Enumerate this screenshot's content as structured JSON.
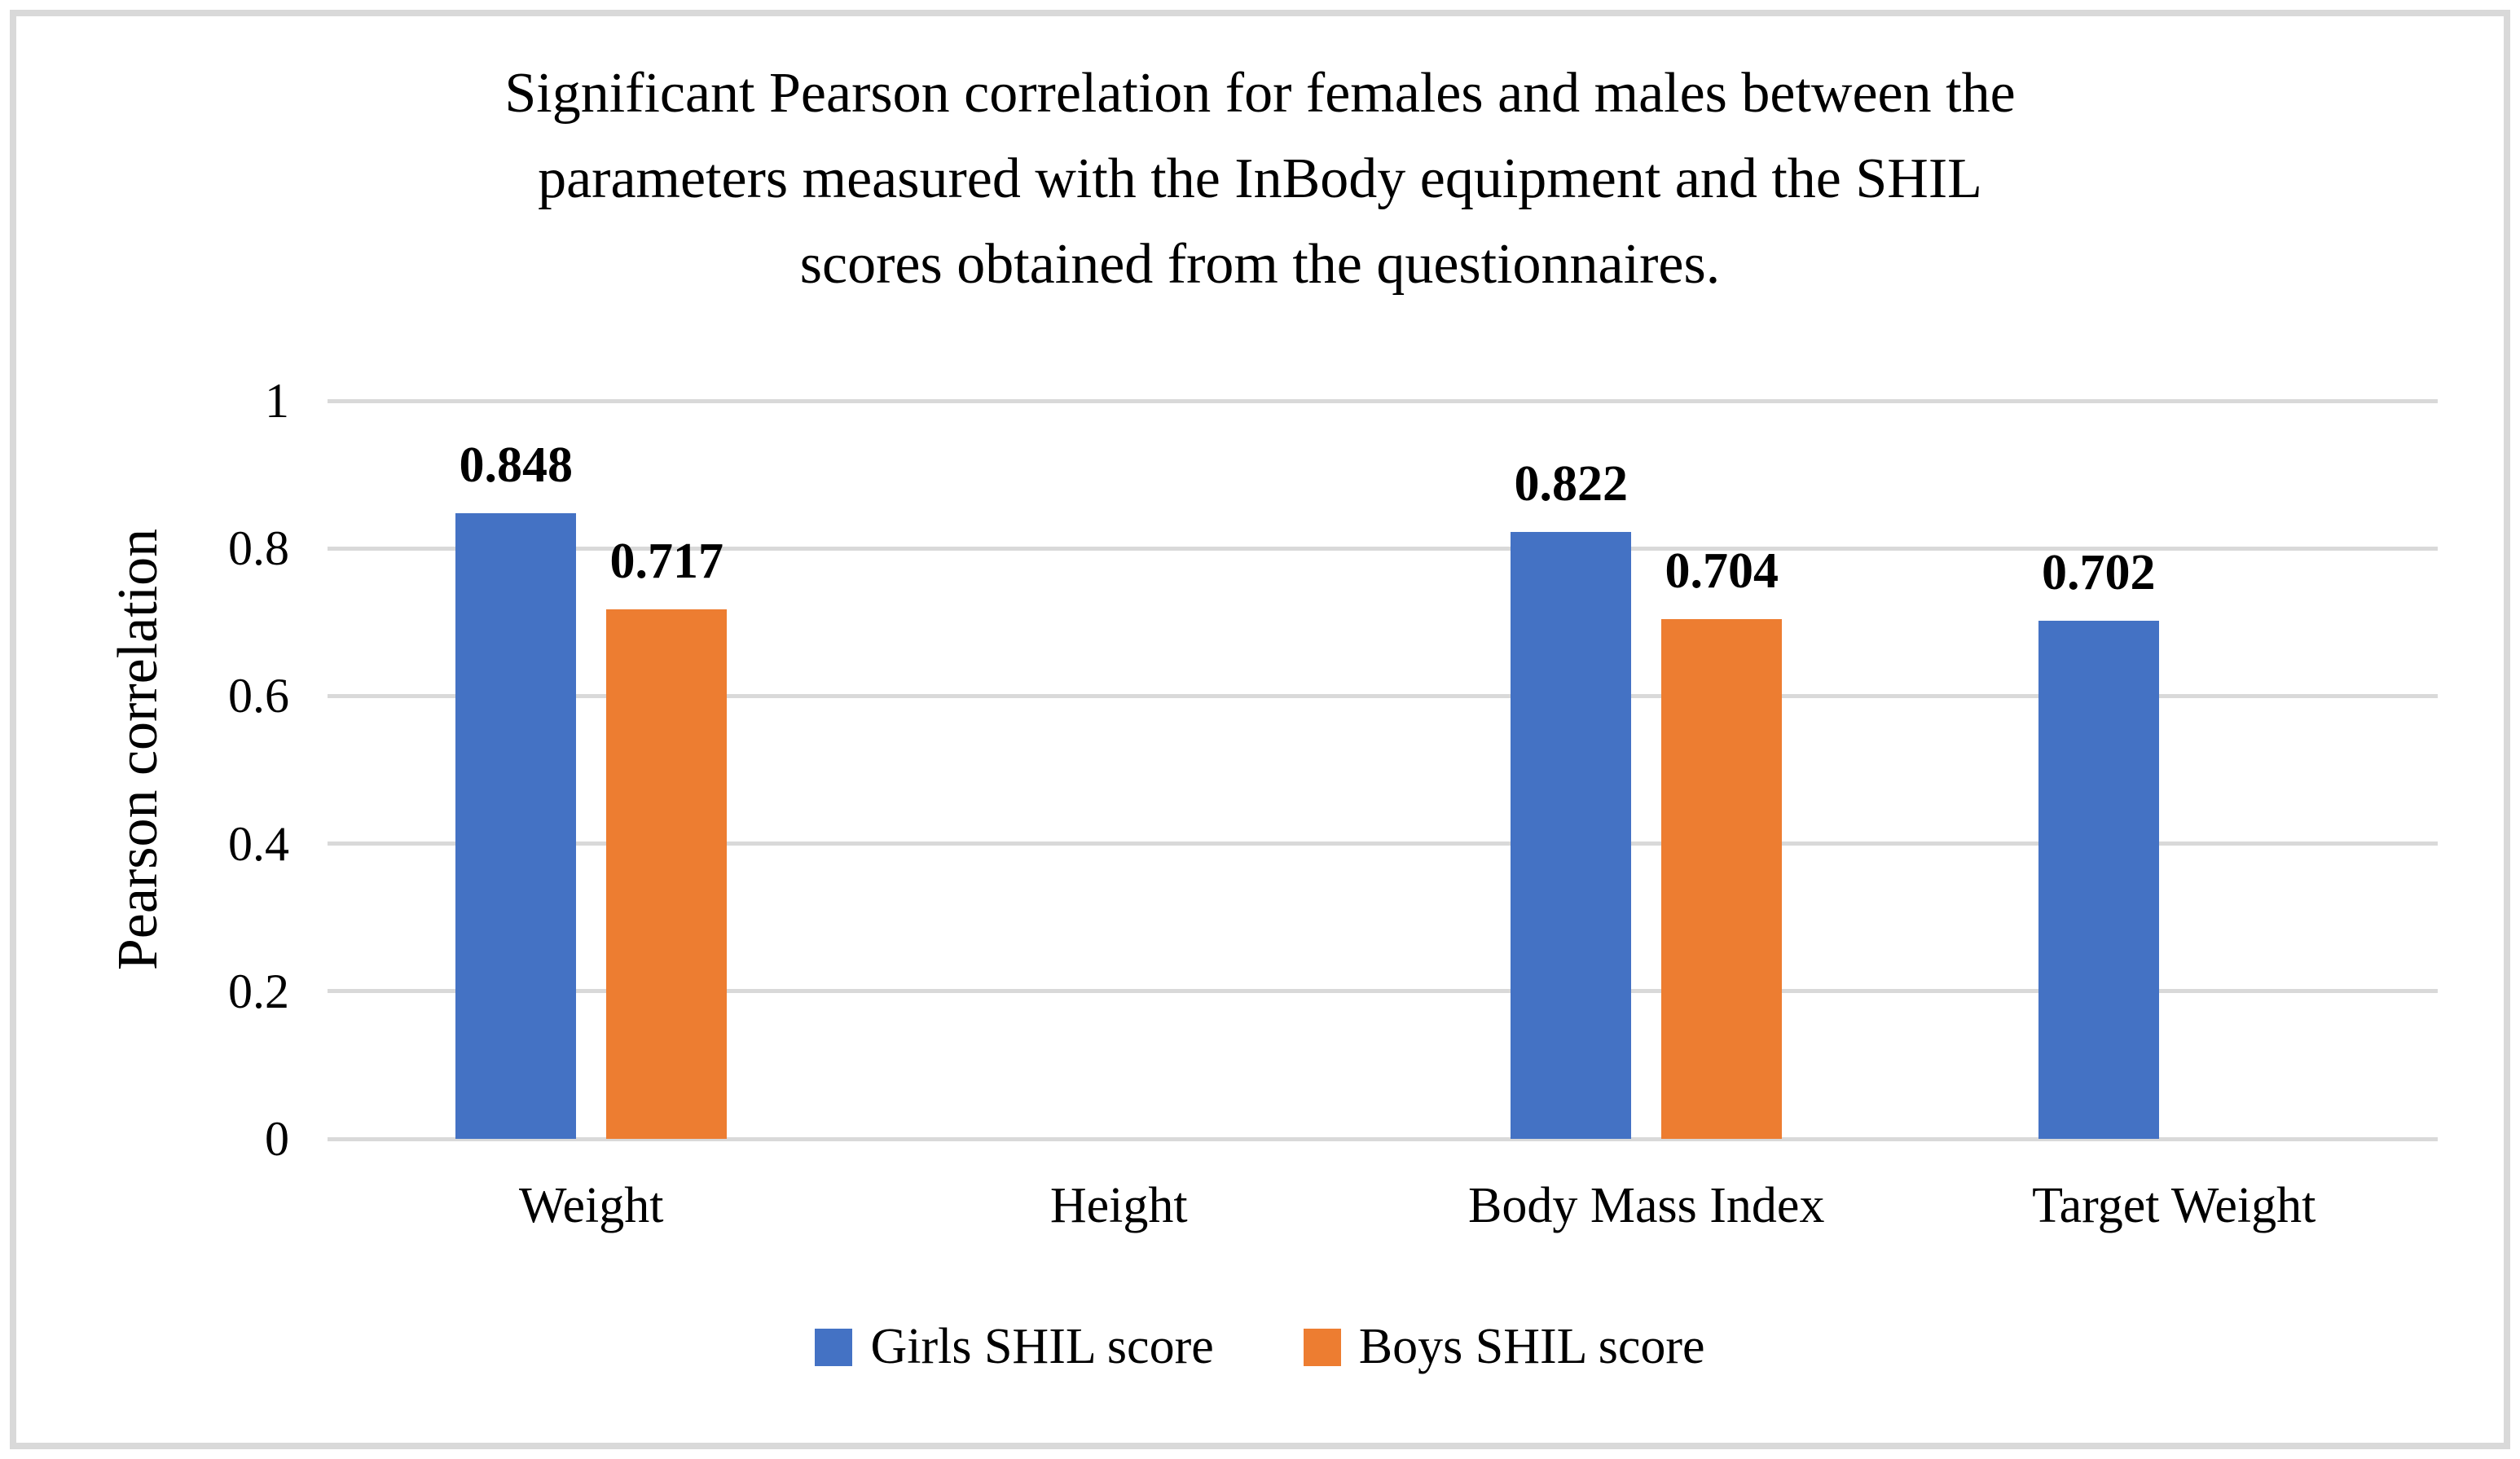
{
  "chart_data": {
    "type": "bar",
    "title": "Significant Pearson correlation for females and males between the parameters measured with the InBody equipment and the SHIL scores obtained from the questionnaires.",
    "title_lines": [
      "Significant Pearson correlation for females and males between the",
      "parameters measured with the InBody equipment and the SHIL",
      "scores obtained from the questionnaires."
    ],
    "xlabel": "",
    "ylabel": "Pearson correlation",
    "ylim": [
      0,
      1
    ],
    "yticks": [
      {
        "value": 0,
        "label": "0"
      },
      {
        "value": 0.2,
        "label": "0.2"
      },
      {
        "value": 0.4,
        "label": "0.4"
      },
      {
        "value": 0.6,
        "label": "0.6"
      },
      {
        "value": 0.8,
        "label": "0.8"
      },
      {
        "value": 1,
        "label": "1"
      }
    ],
    "grid": true,
    "legend_position": "bottom",
    "categories": [
      "Weight",
      "Height",
      "Body Mass Index",
      "Target Weight"
    ],
    "series": [
      {
        "name": "Girls SHIL score",
        "color": "#4472C4",
        "values": [
          0.848,
          null,
          0.822,
          0.702
        ],
        "labels": [
          "0.848",
          null,
          "0.822",
          "0.702"
        ]
      },
      {
        "name": "Boys SHIL score",
        "color": "#ED7D31",
        "values": [
          0.717,
          null,
          0.704,
          null
        ],
        "labels": [
          "0.717",
          null,
          "0.704",
          null
        ]
      }
    ]
  },
  "colors": {
    "background": "#FFFFFF",
    "border": "#D9D9D9",
    "gridline": "#D9D9D9",
    "text": "#000000",
    "girls_series": "#4472C4",
    "boys_series": "#ED7D31"
  }
}
